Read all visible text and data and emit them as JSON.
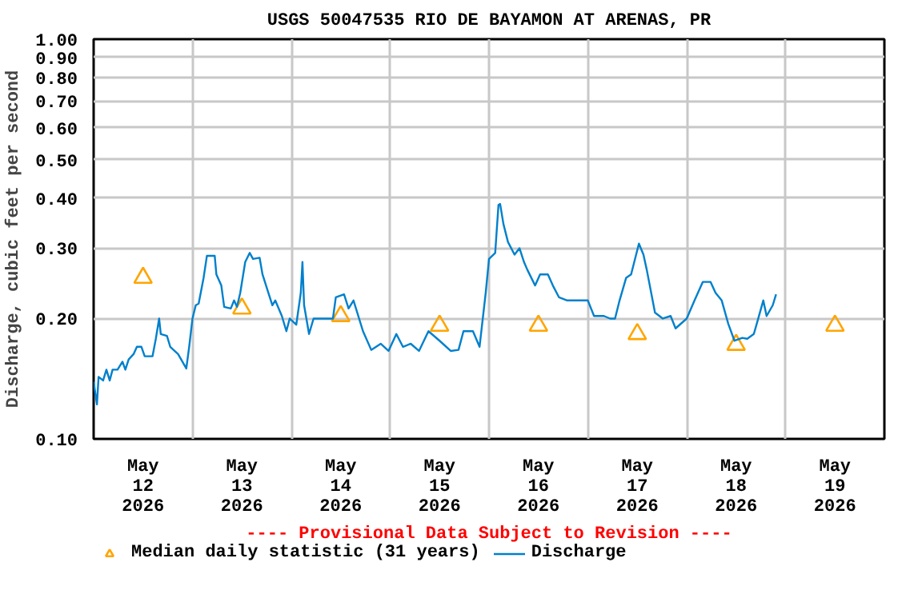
{
  "chart_data": {
    "type": "line",
    "title": "USGS 50047535 RIO DE BAYAMON AT ARENAS, PR",
    "ylabel": "Discharge, cubic feet per second",
    "annotations": [
      "---- Provisional Data Subject to Revision ----"
    ],
    "log": "y",
    "grid": true,
    "legend": "bottom",
    "xlim": [
      "2026-05-12T00:00",
      "2026-05-20T00:00"
    ],
    "ylim": [
      0.1,
      1.0
    ],
    "xticks": [
      {
        "value": "2026-05-12T12:00",
        "label": "May\n12\n2026"
      },
      {
        "value": "2026-05-13T00:00",
        "label": null
      },
      {
        "value": "2026-05-13T12:00",
        "label": "May\n13\n2026"
      },
      {
        "value": "2026-05-14T00:00",
        "label": null
      },
      {
        "value": "2026-05-14T12:00",
        "label": "May\n14\n2026"
      },
      {
        "value": "2026-05-15T00:00",
        "label": null
      },
      {
        "value": "2026-05-15T12:00",
        "label": "May\n15\n2026"
      },
      {
        "value": "2026-05-16T00:00",
        "label": null
      },
      {
        "value": "2026-05-16T12:00",
        "label": "May\n16\n2026"
      },
      {
        "value": "2026-05-17T00:00",
        "label": null
      },
      {
        "value": "2026-05-17T12:00",
        "label": "May\n17\n2026"
      },
      {
        "value": "2026-05-18T00:00",
        "label": null
      },
      {
        "value": "2026-05-18T12:00",
        "label": "May\n18\n2026"
      },
      {
        "value": "2026-05-19T00:00",
        "label": null
      },
      {
        "value": "2026-05-19T12:00",
        "label": "May\n19\n2026"
      }
    ],
    "yticks": [
      {
        "value": 0.1,
        "label": "0.10"
      },
      {
        "value": 0.2,
        "label": "0.20"
      },
      {
        "value": 0.3,
        "label": "0.30"
      },
      {
        "value": 0.4,
        "label": "0.40"
      },
      {
        "value": 0.5,
        "label": "0.50"
      },
      {
        "value": 0.6,
        "label": "0.60"
      },
      {
        "value": 0.7,
        "label": "0.70"
      },
      {
        "value": 0.8,
        "label": "0.80"
      },
      {
        "value": 0.9,
        "label": "0.90"
      },
      {
        "value": 1.0,
        "label": "1.00"
      }
    ],
    "series": [
      {
        "name": "Median daily statistic (31 years)",
        "type": "scatter",
        "marker": "triangle",
        "color": "#ffa500",
        "x": [
          "2026-05-12T12:00",
          "2026-05-13T12:00",
          "2026-05-14T12:00",
          "2026-05-15T12:00",
          "2026-05-16T12:00",
          "2026-05-17T12:00",
          "2026-05-18T12:00",
          "2026-05-19T12:00"
        ],
        "values": [
          0.253,
          0.212,
          0.203,
          0.192,
          0.192,
          0.183,
          0.172,
          0.192
        ]
      },
      {
        "name": "Discharge",
        "color": "#0080cc",
        "x": [
          "2026-05-12T00:00",
          "2026-05-12T00:48",
          "2026-05-12T01:12",
          "2026-05-12T02:18",
          "2026-05-12T03:06",
          "2026-05-12T03:54",
          "2026-05-12T04:36",
          "2026-05-12T05:48",
          "2026-05-12T07:00",
          "2026-05-12T07:42",
          "2026-05-12T08:30",
          "2026-05-12T09:42",
          "2026-05-12T10:30",
          "2026-05-12T11:36",
          "2026-05-12T12:24",
          "2026-05-12T14:18",
          "2026-05-12T15:06",
          "2026-05-12T15:54",
          "2026-05-12T16:18",
          "2026-05-12T17:48",
          "2026-05-12T18:36",
          "2026-05-12T20:30",
          "2026-05-12T22:30",
          "2026-05-12T23:12",
          "2026-05-13T00:00",
          "2026-05-13T00:48",
          "2026-05-13T01:30",
          "2026-05-13T02:42",
          "2026-05-13T03:30",
          "2026-05-13T05:24",
          "2026-05-13T05:48",
          "2026-05-13T07:00",
          "2026-05-13T07:42",
          "2026-05-13T09:18",
          "2026-05-13T10:06",
          "2026-05-13T10:48",
          "2026-05-13T11:36",
          "2026-05-13T12:48",
          "2026-05-13T13:54",
          "2026-05-13T14:42",
          "2026-05-13T16:18",
          "2026-05-13T17:00",
          "2026-05-13T18:12",
          "2026-05-13T19:24",
          "2026-05-13T20:06",
          "2026-05-13T21:42",
          "2026-05-13T22:48",
          "2026-05-13T23:36",
          "2026-05-14T01:12",
          "2026-05-14T02:18",
          "2026-05-14T02:42",
          "2026-05-14T03:06",
          "2026-05-14T04:18",
          "2026-05-14T05:24",
          "2026-05-14T10:06",
          "2026-05-14T10:48",
          "2026-05-14T12:48",
          "2026-05-14T13:54",
          "2026-05-14T15:06",
          "2026-05-14T17:24",
          "2026-05-14T19:24",
          "2026-05-14T21:42",
          "2026-05-14T23:36",
          "2026-05-15T01:30",
          "2026-05-15T03:06",
          "2026-05-15T05:00",
          "2026-05-15T07:00",
          "2026-05-15T09:18",
          "2026-05-15T12:00",
          "2026-05-15T14:42",
          "2026-05-15T16:36",
          "2026-05-15T17:48",
          "2026-05-15T20:06",
          "2026-05-15T21:42",
          "2026-05-15T23:12",
          "2026-05-16T00:00",
          "2026-05-16T01:30",
          "2026-05-16T02:18",
          "2026-05-16T02:42",
          "2026-05-16T03:30",
          "2026-05-16T04:36",
          "2026-05-16T06:12",
          "2026-05-16T07:24",
          "2026-05-16T08:30",
          "2026-05-16T09:18",
          "2026-05-16T11:12",
          "2026-05-16T12:24",
          "2026-05-16T14:18",
          "2026-05-16T15:30",
          "2026-05-16T17:00",
          "2026-05-16T19:00",
          "2026-05-17T00:00",
          "2026-05-17T01:30",
          "2026-05-17T02:42",
          "2026-05-17T03:54",
          "2026-05-17T05:24",
          "2026-05-17T06:36",
          "2026-05-17T07:42",
          "2026-05-17T09:18",
          "2026-05-17T10:30",
          "2026-05-17T12:24",
          "2026-05-17T13:30",
          "2026-05-17T14:18",
          "2026-05-17T16:18",
          "2026-05-17T18:12",
          "2026-05-17T20:06",
          "2026-05-17T21:18",
          "2026-05-18T00:00",
          "2026-05-18T01:54",
          "2026-05-18T03:54",
          "2026-05-18T05:48",
          "2026-05-18T07:00",
          "2026-05-18T08:30",
          "2026-05-18T10:06",
          "2026-05-18T11:36",
          "2026-05-18T13:30",
          "2026-05-18T14:42",
          "2026-05-18T16:18",
          "2026-05-18T17:00",
          "2026-05-18T18:36",
          "2026-05-18T19:24",
          "2026-05-18T20:54",
          "2026-05-18T21:42"
        ],
        "values": [
          0.139,
          0.122,
          0.143,
          0.14,
          0.149,
          0.14,
          0.149,
          0.149,
          0.156,
          0.149,
          0.158,
          0.163,
          0.17,
          0.17,
          0.161,
          0.161,
          0.178,
          0.2,
          0.183,
          0.181,
          0.17,
          0.163,
          0.15,
          0.17,
          0.2,
          0.216,
          0.218,
          0.253,
          0.287,
          0.287,
          0.258,
          0.242,
          0.214,
          0.212,
          0.222,
          0.214,
          0.232,
          0.277,
          0.292,
          0.282,
          0.284,
          0.258,
          0.236,
          0.216,
          0.222,
          0.203,
          0.186,
          0.2,
          0.193,
          0.232,
          0.277,
          0.216,
          0.183,
          0.2,
          0.2,
          0.226,
          0.23,
          0.212,
          0.222,
          0.186,
          0.167,
          0.173,
          0.166,
          0.183,
          0.17,
          0.173,
          0.166,
          0.186,
          0.176,
          0.166,
          0.167,
          0.186,
          0.186,
          0.17,
          0.232,
          0.282,
          0.292,
          0.385,
          0.387,
          0.345,
          0.311,
          0.289,
          0.3,
          0.277,
          0.265,
          0.242,
          0.258,
          0.258,
          0.242,
          0.226,
          0.222,
          0.222,
          0.203,
          0.203,
          0.203,
          0.2,
          0.2,
          0.222,
          0.253,
          0.258,
          0.308,
          0.289,
          0.265,
          0.207,
          0.2,
          0.203,
          0.189,
          0.2,
          0.222,
          0.247,
          0.247,
          0.232,
          0.222,
          0.194,
          0.176,
          0.179,
          0.178,
          0.183,
          0.194,
          0.222,
          0.203,
          0.216,
          0.23
        ]
      }
    ]
  }
}
